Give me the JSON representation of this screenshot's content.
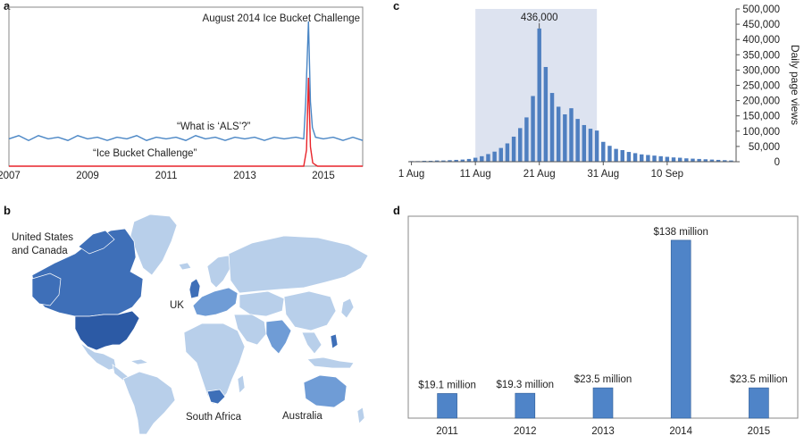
{
  "panels": {
    "a": "a",
    "b": "b",
    "c": "c",
    "d": "d"
  },
  "chart_data": [
    {
      "id": "a",
      "type": "line",
      "x": {
        "range": [
          2007.0,
          2016.0
        ],
        "ticks": [
          "2007",
          "2009",
          "2011",
          "2013",
          "2015"
        ],
        "tick_values": [
          2007,
          2009,
          2011,
          2013,
          2015
        ]
      },
      "annotation": "August 2014 Ice Bucket Challenge",
      "series": [
        {
          "name": "“What is ‘ALS’?”",
          "color": "#4a86c5",
          "points": [
            [
              2007.0,
              17
            ],
            [
              2007.25,
              19
            ],
            [
              2007.5,
              16
            ],
            [
              2007.75,
              19
            ],
            [
              2008.0,
              17
            ],
            [
              2008.25,
              18
            ],
            [
              2008.5,
              16
            ],
            [
              2008.75,
              19
            ],
            [
              2009.0,
              17
            ],
            [
              2009.25,
              18
            ],
            [
              2009.5,
              16
            ],
            [
              2009.75,
              18
            ],
            [
              2010.0,
              17
            ],
            [
              2010.25,
              19
            ],
            [
              2010.5,
              16
            ],
            [
              2010.75,
              18
            ],
            [
              2011.0,
              17
            ],
            [
              2011.25,
              18
            ],
            [
              2011.5,
              16
            ],
            [
              2011.75,
              19
            ],
            [
              2012.0,
              17
            ],
            [
              2012.25,
              18
            ],
            [
              2012.5,
              16
            ],
            [
              2012.75,
              18
            ],
            [
              2013.0,
              17
            ],
            [
              2013.25,
              18
            ],
            [
              2013.5,
              16
            ],
            [
              2013.75,
              18
            ],
            [
              2014.0,
              17
            ],
            [
              2014.3,
              18
            ],
            [
              2014.5,
              17
            ],
            [
              2014.55,
              40
            ],
            [
              2014.62,
              90
            ],
            [
              2014.67,
              40
            ],
            [
              2014.72,
              24
            ],
            [
              2014.8,
              18
            ],
            [
              2015.0,
              17
            ],
            [
              2015.25,
              18
            ],
            [
              2015.5,
              16
            ],
            [
              2015.75,
              18
            ],
            [
              2016.0,
              16
            ]
          ]
        },
        {
          "name": "“Ice Bucket Challenge”",
          "color": "#e8242a",
          "points": [
            [
              2007.0,
              0
            ],
            [
              2014.5,
              0
            ],
            [
              2014.57,
              10
            ],
            [
              2014.62,
              55
            ],
            [
              2014.67,
              12
            ],
            [
              2014.73,
              2
            ],
            [
              2014.85,
              0
            ],
            [
              2016.0,
              0
            ]
          ]
        }
      ]
    },
    {
      "id": "c",
      "type": "bar",
      "ylabel": "Daily page views",
      "ylim": [
        0,
        500000
      ],
      "yticks": [
        "0",
        "50,000",
        "100,000",
        "150,000",
        "200,000",
        "250,000",
        "300,000",
        "350,000",
        "400,000",
        "450,000",
        "500,000"
      ],
      "ytick_values": [
        0,
        50000,
        100000,
        150000,
        200000,
        250000,
        300000,
        350000,
        400000,
        450000,
        500000
      ],
      "xticks": [
        "1 Aug",
        "11 Aug",
        "21 Aug",
        "31 Aug",
        "10 Sep"
      ],
      "xtick_days": [
        1,
        11,
        21,
        31,
        41
      ],
      "highlight_days": [
        11,
        30
      ],
      "peak_label": "436,000",
      "days": [
        1,
        2,
        3,
        4,
        5,
        6,
        7,
        8,
        9,
        10,
        11,
        12,
        13,
        14,
        15,
        16,
        17,
        18,
        19,
        20,
        21,
        22,
        23,
        24,
        25,
        26,
        27,
        28,
        29,
        30,
        31,
        32,
        33,
        34,
        35,
        36,
        37,
        38,
        39,
        40,
        41,
        42,
        43,
        44,
        45,
        46,
        47,
        48,
        49,
        50,
        51
      ],
      "values": [
        2000,
        2000,
        3000,
        3000,
        4000,
        4000,
        5000,
        6000,
        7000,
        9000,
        13000,
        18000,
        25000,
        33000,
        45000,
        60000,
        82000,
        110000,
        145000,
        215000,
        436000,
        310000,
        225000,
        180000,
        155000,
        175000,
        140000,
        120000,
        108000,
        102000,
        65000,
        52000,
        42000,
        38000,
        32000,
        28000,
        24000,
        22000,
        20000,
        18000,
        16000,
        14000,
        13000,
        11000,
        10000,
        9000,
        8000,
        7000,
        6000,
        5000,
        4000
      ]
    },
    {
      "id": "b",
      "type": "choropleth",
      "labels": {
        "us": "United States\nand Canada",
        "uk": "UK",
        "sa": "South Africa",
        "au": "Australia"
      },
      "colors": {
        "light": "#b8cfea",
        "medium": "#6f9cd6",
        "dark": "#3e6fb8",
        "darkest": "#2c5aa5"
      }
    },
    {
      "id": "d",
      "type": "bar",
      "categories": [
        "2011",
        "2012",
        "2013",
        "2014",
        "2015"
      ],
      "values": [
        19.1,
        19.3,
        23.5,
        138,
        23.5
      ],
      "value_labels": [
        "$19.1 million",
        "$19.3 million",
        "$23.5 million",
        "$138 million",
        "$23.5 million"
      ],
      "color": "#4f84c8"
    }
  ]
}
